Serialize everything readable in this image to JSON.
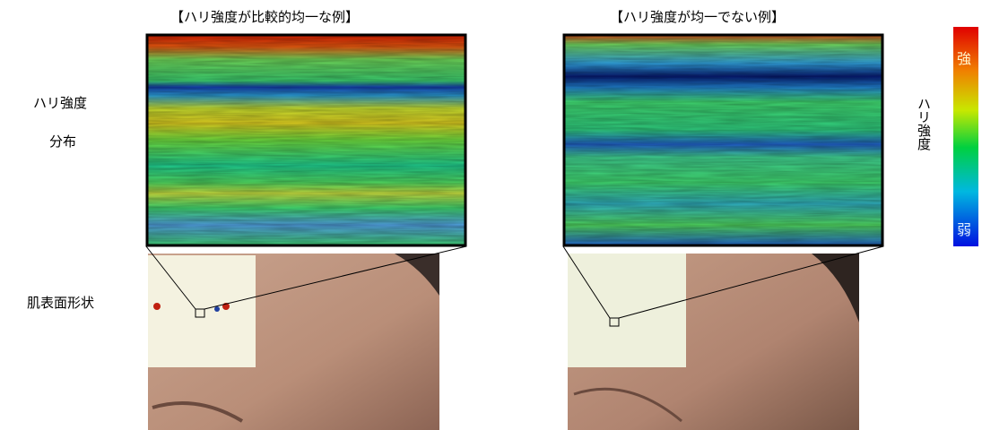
{
  "header": {
    "left_title": "【ハリ強度が比較的均一な例】",
    "right_title": "【ハリ強度が均一でない例】"
  },
  "rows": {
    "distribution": [
      "ハリ強度",
      "分布"
    ],
    "surface": "肌表面形状"
  },
  "colorbar": {
    "high": "強",
    "low": "弱",
    "label": "ハリ強度"
  }
}
